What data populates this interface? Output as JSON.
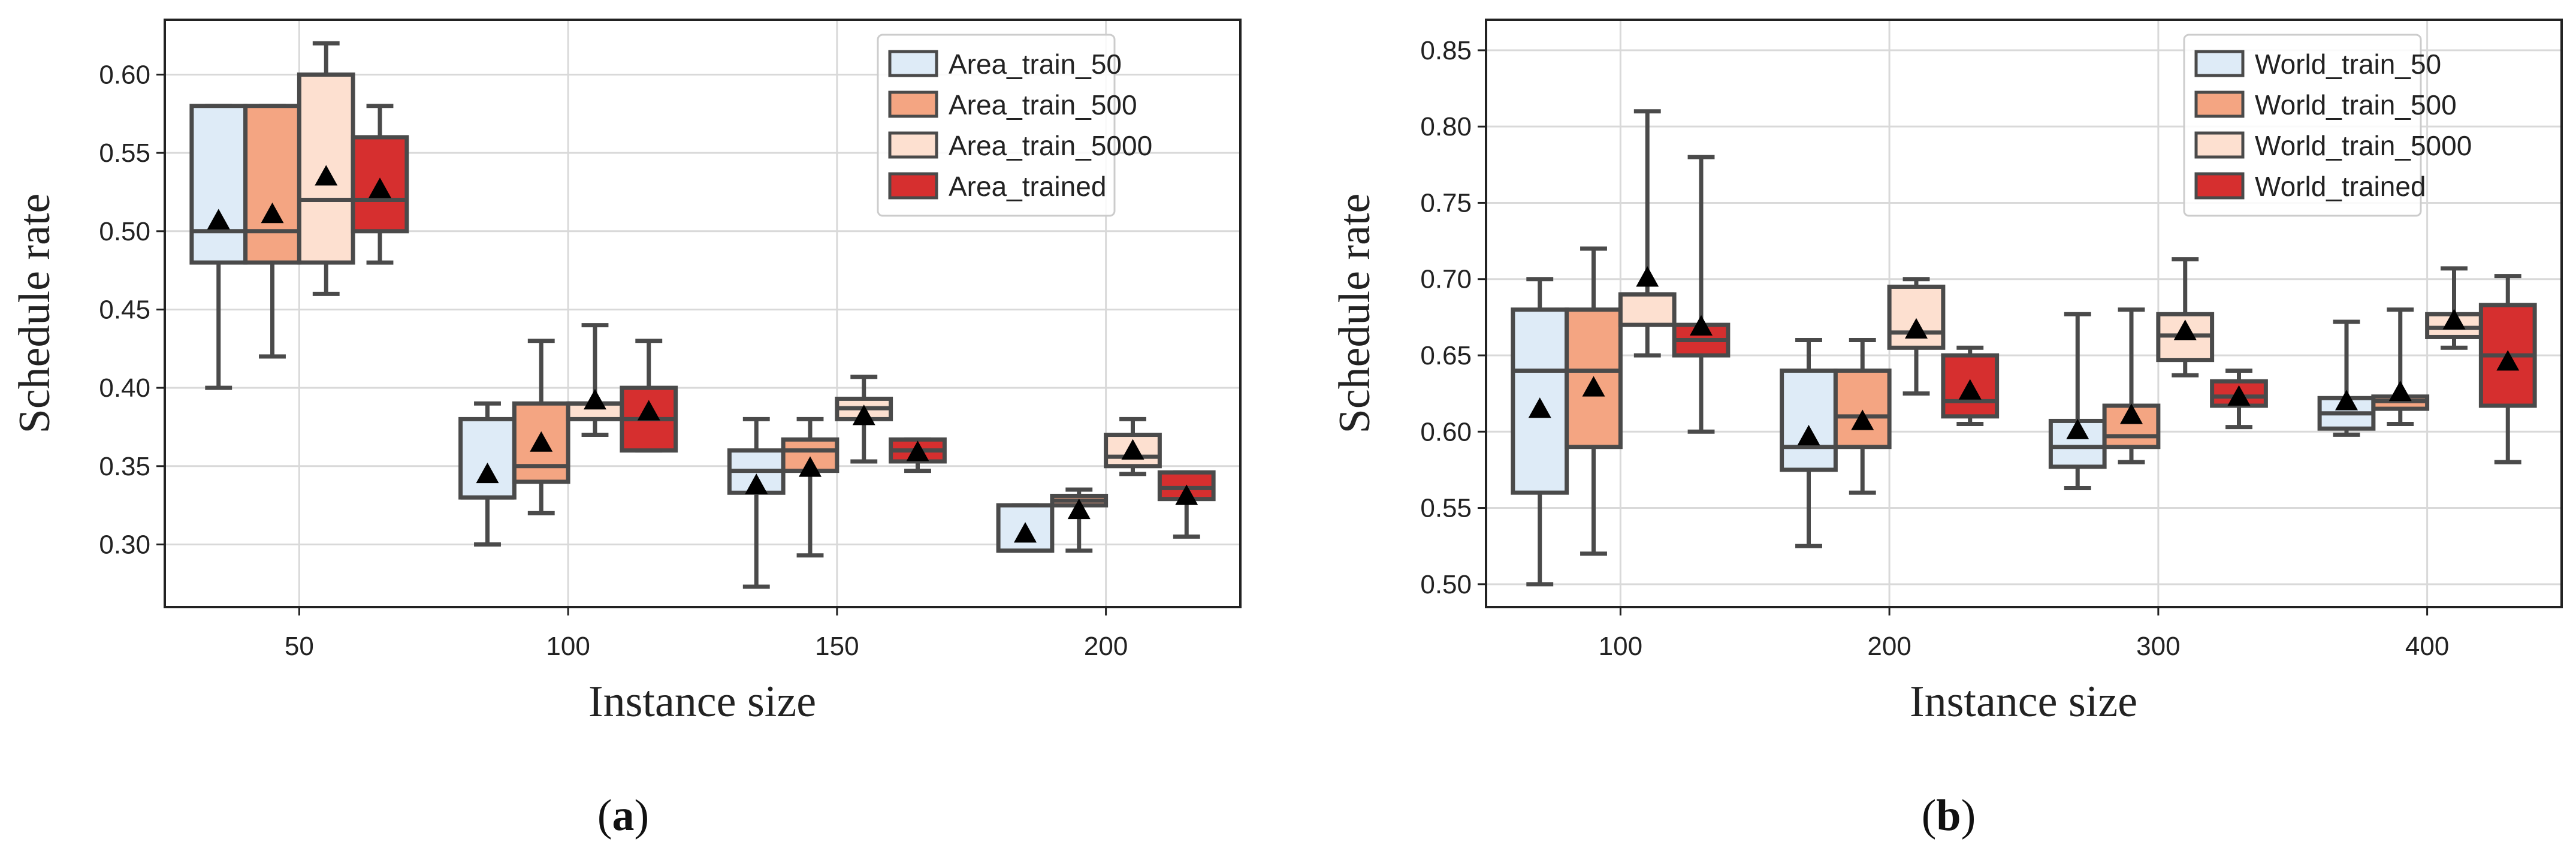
{
  "colors": {
    "train_50": "#deebf7",
    "train_500": "#f4a582",
    "train_5000": "#fde0d0",
    "trained": "#d62f2f",
    "box_edge": "#4a4a4a",
    "grid": "#d9d9d9"
  },
  "chart_data": [
    {
      "type": "box",
      "panel_label": "a",
      "xlabel": "Instance size",
      "ylabel": "Schedule rate",
      "ylim": [
        0.26,
        0.635
      ],
      "yticks": [
        0.3,
        0.35,
        0.4,
        0.45,
        0.5,
        0.55,
        0.6
      ],
      "ytick_labels": [
        "0.30",
        "0.35",
        "0.40",
        "0.45",
        "0.50",
        "0.55",
        "0.60"
      ],
      "categories": [
        "50",
        "100",
        "150",
        "200"
      ],
      "legend_position": "top-right",
      "grid": true,
      "mean_marker": "triangle",
      "series": [
        {
          "name": "Area_train_50",
          "color_key": "train_50",
          "boxes": [
            {
              "whislo": 0.4,
              "q1": 0.48,
              "med": 0.5,
              "q3": 0.58,
              "whishi": 0.58,
              "mean": 0.507
            },
            {
              "whislo": 0.3,
              "q1": 0.33,
              "med": 0.33,
              "q3": 0.38,
              "whishi": 0.39,
              "mean": 0.345
            },
            {
              "whislo": 0.273,
              "q1": 0.333,
              "med": 0.347,
              "q3": 0.36,
              "whishi": 0.38,
              "mean": 0.338
            },
            {
              "whislo": 0.296,
              "q1": 0.296,
              "med": 0.296,
              "q3": 0.325,
              "whishi": 0.325,
              "mean": 0.307
            }
          ]
        },
        {
          "name": "Area_train_500",
          "color_key": "train_500",
          "boxes": [
            {
              "whislo": 0.42,
              "q1": 0.48,
              "med": 0.5,
              "q3": 0.58,
              "whishi": 0.58,
              "mean": 0.511
            },
            {
              "whislo": 0.32,
              "q1": 0.34,
              "med": 0.35,
              "q3": 0.39,
              "whishi": 0.43,
              "mean": 0.365
            },
            {
              "whislo": 0.293,
              "q1": 0.347,
              "med": 0.36,
              "q3": 0.367,
              "whishi": 0.38,
              "mean": 0.349
            },
            {
              "whislo": 0.296,
              "q1": 0.325,
              "med": 0.328,
              "q3": 0.331,
              "whishi": 0.335,
              "mean": 0.322
            }
          ]
        },
        {
          "name": "Area_train_5000",
          "color_key": "train_5000",
          "boxes": [
            {
              "whislo": 0.46,
              "q1": 0.48,
              "med": 0.52,
              "q3": 0.6,
              "whishi": 0.62,
              "mean": 0.535
            },
            {
              "whislo": 0.37,
              "q1": 0.38,
              "med": 0.39,
              "q3": 0.39,
              "whishi": 0.44,
              "mean": 0.392
            },
            {
              "whislo": 0.353,
              "q1": 0.38,
              "med": 0.387,
              "q3": 0.393,
              "whishi": 0.407,
              "mean": 0.382
            },
            {
              "whislo": 0.345,
              "q1": 0.35,
              "med": 0.356,
              "q3": 0.37,
              "whishi": 0.38,
              "mean": 0.36
            }
          ]
        },
        {
          "name": "Area_trained",
          "color_key": "trained",
          "boxes": [
            {
              "whislo": 0.48,
              "q1": 0.5,
              "med": 0.52,
              "q3": 0.56,
              "whishi": 0.58,
              "mean": 0.527
            },
            {
              "whislo": 0.36,
              "q1": 0.36,
              "med": 0.38,
              "q3": 0.4,
              "whishi": 0.43,
              "mean": 0.385
            },
            {
              "whislo": 0.347,
              "q1": 0.353,
              "med": 0.36,
              "q3": 0.367,
              "whishi": 0.367,
              "mean": 0.359
            },
            {
              "whislo": 0.305,
              "q1": 0.329,
              "med": 0.336,
              "q3": 0.346,
              "whishi": 0.346,
              "mean": 0.331
            }
          ]
        }
      ]
    },
    {
      "type": "box",
      "panel_label": "b",
      "xlabel": "Instance size",
      "ylabel": "Schedule rate",
      "ylim": [
        0.485,
        0.87
      ],
      "yticks": [
        0.5,
        0.55,
        0.6,
        0.65,
        0.7,
        0.75,
        0.8,
        0.85
      ],
      "ytick_labels": [
        "0.50",
        "0.55",
        "0.60",
        "0.65",
        "0.70",
        "0.75",
        "0.80",
        "0.85"
      ],
      "categories": [
        "100",
        "200",
        "300",
        "400"
      ],
      "legend_position": "top-right",
      "grid": true,
      "mean_marker": "triangle",
      "series": [
        {
          "name": "World_train_50",
          "color_key": "train_50",
          "boxes": [
            {
              "whislo": 0.5,
              "q1": 0.56,
              "med": 0.64,
              "q3": 0.68,
              "whishi": 0.7,
              "mean": 0.615
            },
            {
              "whislo": 0.525,
              "q1": 0.575,
              "med": 0.59,
              "q3": 0.64,
              "whishi": 0.66,
              "mean": 0.597
            },
            {
              "whislo": 0.563,
              "q1": 0.577,
              "med": 0.59,
              "q3": 0.607,
              "whishi": 0.677,
              "mean": 0.601
            },
            {
              "whislo": 0.598,
              "q1": 0.602,
              "med": 0.612,
              "q3": 0.622,
              "whishi": 0.672,
              "mean": 0.62
            }
          ]
        },
        {
          "name": "World_train_500",
          "color_key": "train_500",
          "boxes": [
            {
              "whislo": 0.52,
              "q1": 0.59,
              "med": 0.64,
              "q3": 0.68,
              "whishi": 0.72,
              "mean": 0.629
            },
            {
              "whislo": 0.56,
              "q1": 0.59,
              "med": 0.61,
              "q3": 0.64,
              "whishi": 0.66,
              "mean": 0.607
            },
            {
              "whislo": 0.58,
              "q1": 0.59,
              "med": 0.597,
              "q3": 0.617,
              "whishi": 0.68,
              "mean": 0.611
            },
            {
              "whislo": 0.605,
              "q1": 0.615,
              "med": 0.62,
              "q3": 0.623,
              "whishi": 0.68,
              "mean": 0.626
            }
          ]
        },
        {
          "name": "World_train_5000",
          "color_key": "train_5000",
          "boxes": [
            {
              "whislo": 0.65,
              "q1": 0.67,
              "med": 0.69,
              "q3": 0.69,
              "whishi": 0.81,
              "mean": 0.701
            },
            {
              "whislo": 0.625,
              "q1": 0.655,
              "med": 0.665,
              "q3": 0.695,
              "whishi": 0.7,
              "mean": 0.667
            },
            {
              "whislo": 0.637,
              "q1": 0.647,
              "med": 0.663,
              "q3": 0.677,
              "whishi": 0.713,
              "mean": 0.666
            },
            {
              "whislo": 0.655,
              "q1": 0.662,
              "med": 0.668,
              "q3": 0.677,
              "whishi": 0.707,
              "mean": 0.673
            }
          ]
        },
        {
          "name": "World_trained",
          "color_key": "trained",
          "boxes": [
            {
              "whislo": 0.6,
              "q1": 0.65,
              "med": 0.66,
              "q3": 0.67,
              "whishi": 0.78,
              "mean": 0.669
            },
            {
              "whislo": 0.605,
              "q1": 0.61,
              "med": 0.62,
              "q3": 0.65,
              "whishi": 0.655,
              "mean": 0.627
            },
            {
              "whislo": 0.603,
              "q1": 0.617,
              "med": 0.623,
              "q3": 0.633,
              "whishi": 0.64,
              "mean": 0.623
            },
            {
              "whislo": 0.58,
              "q1": 0.617,
              "med": 0.65,
              "q3": 0.683,
              "whishi": 0.702,
              "mean": 0.646
            }
          ]
        }
      ]
    }
  ],
  "captions": {
    "a": {
      "open": "(",
      "letter": "a",
      "close": ")"
    },
    "b": {
      "open": "(",
      "letter": "b",
      "close": ")"
    }
  }
}
